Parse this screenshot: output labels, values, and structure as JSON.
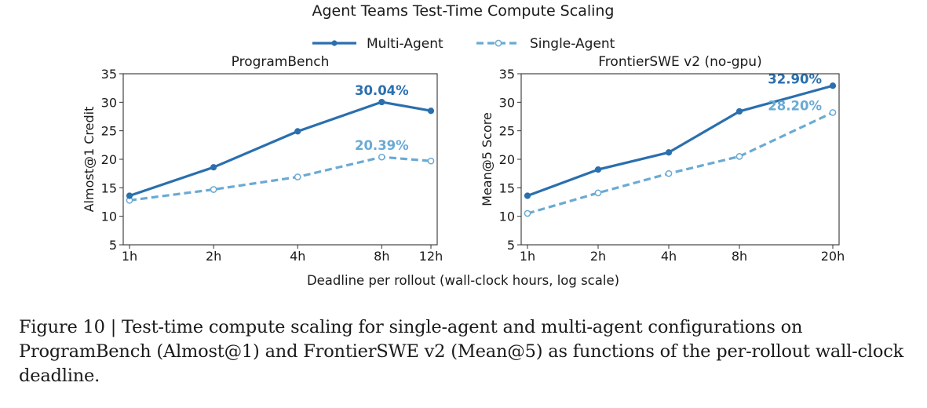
{
  "figure": {
    "title": "Agent Teams Test-Time Compute Scaling",
    "xlabel": "Deadline per rollout (wall-clock hours, log scale)",
    "colors": {
      "multi": "#2a6fae",
      "single": "#6aaad4",
      "frame": "#333333"
    }
  },
  "legend": {
    "placement": "top-center",
    "entries": [
      {
        "label": "Multi-Agent",
        "style": "solid",
        "marker": "filled-circle"
      },
      {
        "label": "Single-Agent",
        "style": "dashed",
        "marker": "hollow-circle"
      }
    ]
  },
  "chart_data": [
    {
      "type": "line",
      "title": "ProgramBench",
      "xlabel": "",
      "ylabel": "Almost@1 Credit",
      "xscale": "log",
      "x": [
        1,
        2,
        4,
        8,
        12
      ],
      "xticklabels": [
        "1h",
        "2h",
        "4h",
        "8h",
        "12h"
      ],
      "ylim": [
        5,
        35
      ],
      "yticks": [
        5,
        10,
        15,
        20,
        25,
        30,
        35
      ],
      "grid": false,
      "series": [
        {
          "name": "Multi-Agent",
          "values": [
            13.6,
            18.6,
            24.9,
            30.04,
            28.5
          ]
        },
        {
          "name": "Single-Agent",
          "values": [
            12.8,
            14.7,
            16.9,
            20.39,
            19.7
          ]
        }
      ],
      "annotations": [
        {
          "text": "30.04%",
          "series": "Multi-Agent",
          "x": 8,
          "y": 30.04
        },
        {
          "text": "20.39%",
          "series": "Single-Agent",
          "x": 8,
          "y": 20.39
        }
      ]
    },
    {
      "type": "line",
      "title": "FrontierSWE v2 (no-gpu)",
      "xlabel": "",
      "ylabel": "Mean@5 Score",
      "xscale": "log",
      "x": [
        1,
        2,
        4,
        8,
        20
      ],
      "xticklabels": [
        "1h",
        "2h",
        "4h",
        "8h",
        "20h"
      ],
      "ylim": [
        5,
        35
      ],
      "yticks": [
        5,
        10,
        15,
        20,
        25,
        30,
        35
      ],
      "grid": false,
      "series": [
        {
          "name": "Multi-Agent",
          "values": [
            13.6,
            18.2,
            21.2,
            28.4,
            32.9
          ]
        },
        {
          "name": "Single-Agent",
          "values": [
            10.5,
            14.1,
            17.5,
            20.5,
            28.2
          ]
        }
      ],
      "annotations": [
        {
          "text": "32.90%",
          "series": "Multi-Agent",
          "x": 20,
          "y": 32.9
        },
        {
          "text": "28.20%",
          "series": "Single-Agent",
          "x": 20,
          "y": 28.2
        }
      ]
    }
  ],
  "caption": "Figure 10 | Test-time compute scaling for single-agent and multi-agent configurations on ProgramBench (Almost@1) and FrontierSWE v2 (Mean@5) as functions of the per-rollout wall-clock deadline."
}
